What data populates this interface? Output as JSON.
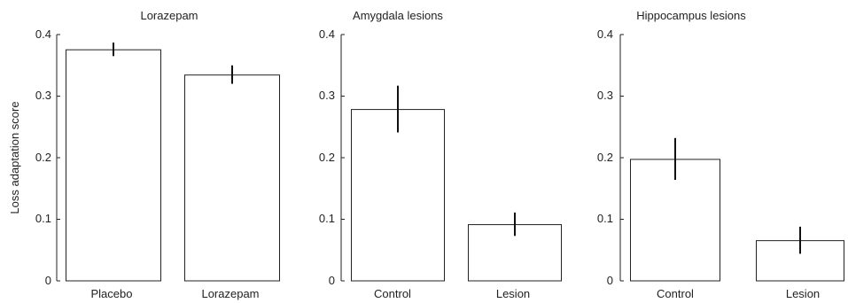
{
  "chart_data": [
    {
      "type": "bar",
      "title": "Lorazepam",
      "ylabel": "Loss adaptation score",
      "xlabel": "",
      "categories": [
        "Placebo",
        "Lorazepam"
      ],
      "values": [
        0.376,
        0.335
      ],
      "error": [
        0.011,
        0.015
      ],
      "ylim": [
        0,
        0.4
      ],
      "yticks": [
        "0",
        "0.1",
        "0.2",
        "0.3",
        "0.4"
      ],
      "grid": false
    },
    {
      "type": "bar",
      "title": "Amygdala lesions",
      "ylabel": "",
      "xlabel": "",
      "categories": [
        "Control",
        "Lesion"
      ],
      "values": [
        0.279,
        0.092
      ],
      "error": [
        0.038,
        0.019
      ],
      "ylim": [
        0,
        0.4
      ],
      "yticks": [
        "0",
        "0.1",
        "0.2",
        "0.3",
        "0.4"
      ],
      "grid": false
    },
    {
      "type": "bar",
      "title": "Hippocampus lesions",
      "ylabel": "",
      "xlabel": "",
      "categories": [
        "Control",
        "Lesion"
      ],
      "values": [
        0.198,
        0.066
      ],
      "error": [
        0.034,
        0.022
      ],
      "ylim": [
        0,
        0.4
      ],
      "yticks": [
        "0",
        "0.1",
        "0.2",
        "0.3",
        "0.4"
      ],
      "grid": false
    }
  ]
}
